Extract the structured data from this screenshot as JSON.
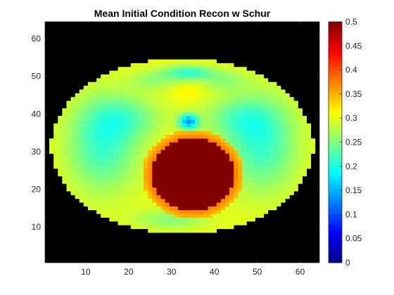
{
  "chart_data": {
    "type": "heatmap",
    "title": "Mean Initial Condition Recon w Schur",
    "xlabel": "",
    "ylabel": "",
    "grid": false,
    "x_range": [
      0.5,
      64.5
    ],
    "y_range": [
      0.5,
      64.5
    ],
    "x_ticks": [
      10,
      20,
      30,
      40,
      50,
      60
    ],
    "y_ticks": [
      10,
      20,
      30,
      40,
      50,
      60
    ],
    "colormap": "jet",
    "color_limits": [
      0,
      0.5
    ],
    "colorbar": {
      "location": "right",
      "ticks": [
        "0",
        "0.05",
        "0.1",
        "0.15",
        "0.2",
        "0.25",
        "0.3",
        "0.35",
        "0.4",
        "0.45",
        "0.5"
      ]
    },
    "background_value_color": "#000000",
    "image_description": "Elliptical body cross-section (x≈2–63, y≈8–54) with values mostly ~0.3 (yellow), lateral lobes ~0.22 (cyan), small spots ~0.15 near x≈34,y≈38 and x≈34,y≈51, and a circular inclusion ~0.5 (dark red) centered near x≈35,y≈24 with radius ≈10."
  },
  "heatmap_model": {
    "body": {
      "cx": 32.5,
      "cy": 31.5,
      "rx": 30.6,
      "ry": 23.3,
      "top_cap": 54.4,
      "bottom_cap": 8.2
    },
    "base_value": 0.305,
    "rim_value": 0.31,
    "blobs": [
      {
        "cx": 14,
        "cy": 32,
        "sx": 6,
        "sy": 9,
        "amp": -0.09
      },
      {
        "cx": 51,
        "cy": 32,
        "sx": 6,
        "sy": 9,
        "amp": -0.09
      },
      {
        "cx": 20,
        "cy": 39,
        "sx": 6,
        "sy": 4,
        "amp": -0.05
      },
      {
        "cx": 45,
        "cy": 39,
        "sx": 6,
        "sy": 4,
        "amp": -0.05
      },
      {
        "cx": 34,
        "cy": 38,
        "sx": 1.6,
        "sy": 1.4,
        "amp": -0.16
      },
      {
        "cx": 34,
        "cy": 51,
        "sx": 4,
        "sy": 1.4,
        "amp": -0.09
      },
      {
        "cx": 34,
        "cy": 46,
        "sx": 2.5,
        "sy": 1.5,
        "amp": 0.02
      },
      {
        "cx": 30,
        "cy": 12,
        "sx": 6,
        "sy": 2,
        "amp": -0.05
      },
      {
        "cx": 26,
        "cy": 49,
        "sx": 4,
        "sy": 2,
        "amp": -0.04
      },
      {
        "cx": 42,
        "cy": 49,
        "sx": 4,
        "sy": 2,
        "amp": -0.04
      }
    ],
    "inclusion": {
      "cx": 35,
      "cy": 24,
      "r": 9.6,
      "value": 0.5,
      "halo_width": 2.2,
      "halo_value": 0.34
    }
  }
}
